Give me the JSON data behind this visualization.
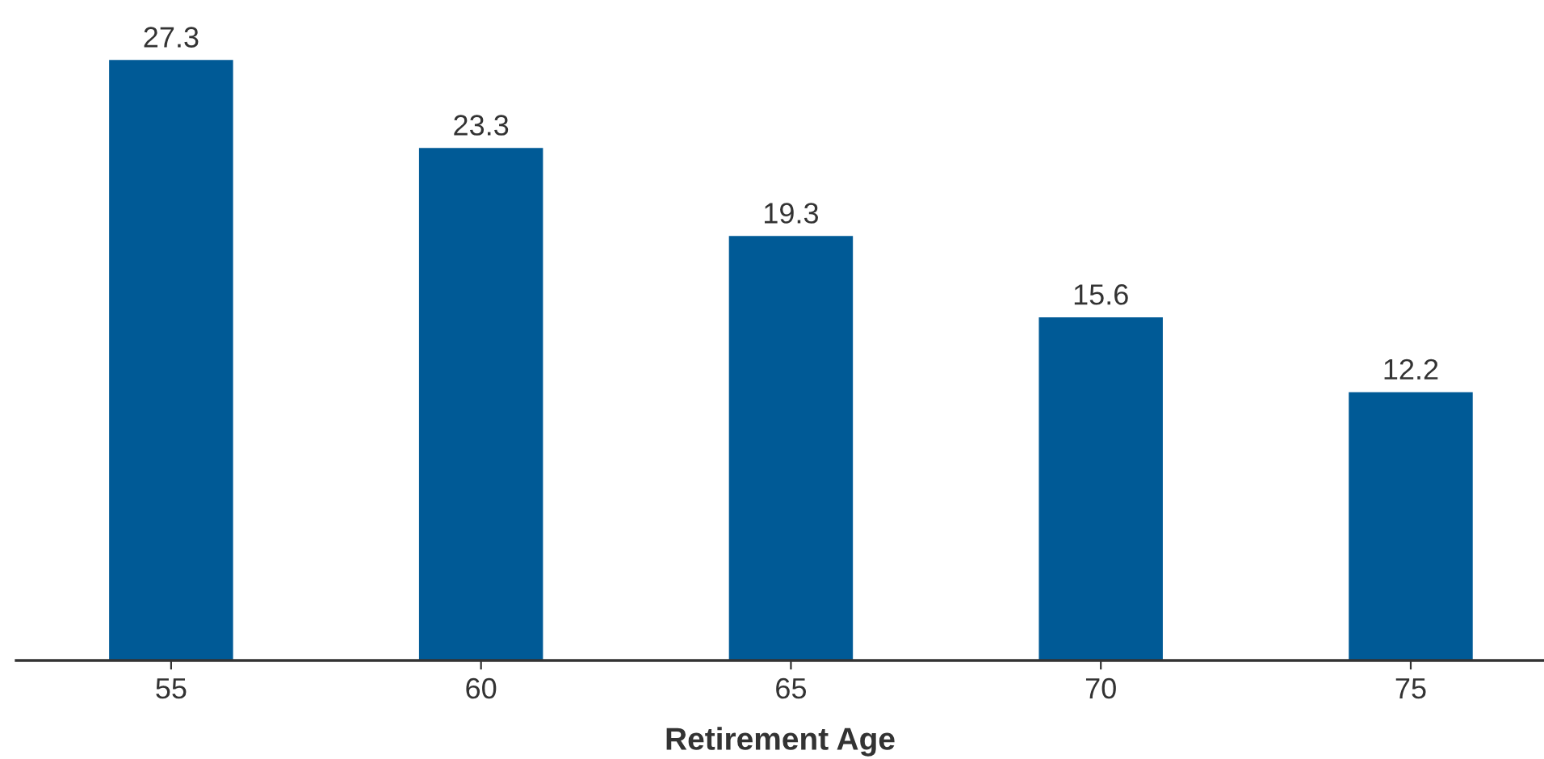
{
  "chart_data": {
    "type": "bar",
    "xlabel": "Retirement Age",
    "categories": [
      "55",
      "60",
      "65",
      "70",
      "75"
    ],
    "values": [
      27.3,
      23.3,
      19.3,
      15.6,
      12.2
    ],
    "color": "#005a96",
    "data_labels": true,
    "tick_labels": "x",
    "grid": false,
    "legend": false
  }
}
